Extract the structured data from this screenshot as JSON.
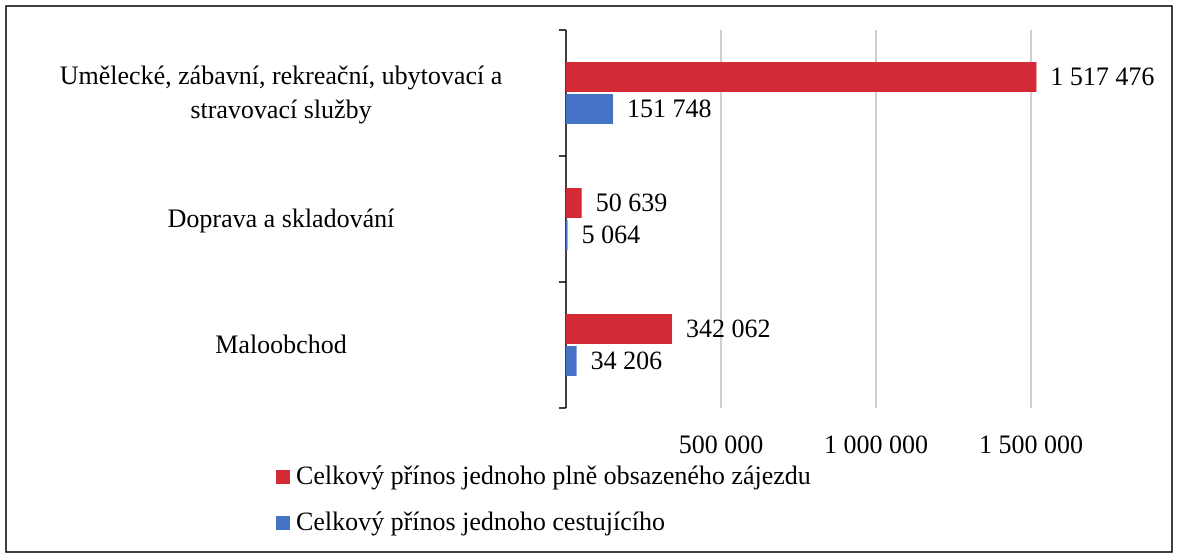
{
  "chart_data": {
    "type": "bar",
    "orientation": "horizontal",
    "categories": [
      "Umělecké, zábavní, rekreační, ubytovací a stravovací služby",
      "Doprava a skladování",
      "Maloobchod"
    ],
    "series": [
      {
        "name": "Celkový přínos jednoho plně obsazeného zájezdu",
        "color": "#d42a35",
        "values": [
          1517476,
          50639,
          342062
        ],
        "value_labels": [
          "1 517 476",
          "50 639",
          "342 062"
        ]
      },
      {
        "name": "Celkový přínos jednoho cestujícího",
        "color": "#4472c4",
        "values": [
          151748,
          5064,
          34206
        ],
        "value_labels": [
          "151 748",
          "5 064",
          "34 206"
        ]
      }
    ],
    "xlim": [
      0,
      1500000
    ],
    "xticks": [
      {
        "value": 500000,
        "label": "500 000"
      },
      {
        "value": 1000000,
        "label": "1 000 000"
      },
      {
        "value": 1500000,
        "label": "1 500 000"
      }
    ],
    "grid": true,
    "legend": "bottom"
  }
}
